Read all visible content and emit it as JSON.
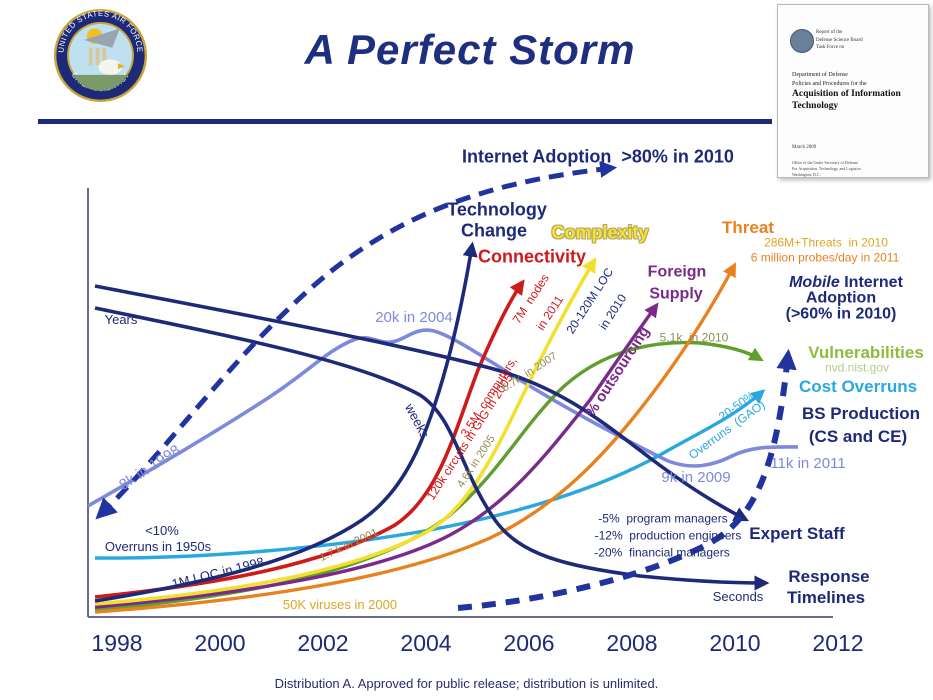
{
  "header": {
    "title": "A Perfect Storm"
  },
  "seal": {
    "top_text": "UNITED STATES AIR FORCE",
    "bottom_text": "CHIEF SCIENTIST"
  },
  "report": {
    "header_line1": "Report of the",
    "header_line2": "Defense Science Board",
    "header_line3": "Task Force on",
    "sub_line1": "Department of Defense",
    "sub_line2": "Policies and Procedures for the",
    "title_line1": "Acquisition of Information",
    "title_line2": "Technology",
    "date": "March 2009",
    "addr_line1": "Office of the Under Secretary of Defense",
    "addr_line2": "For Acquisition, Technology, and Logistics",
    "addr_line3": "Washington, D.C."
  },
  "right_panel": {
    "mobile_word": "Mobile",
    "internet_word": " Internet"
  },
  "footer": {
    "distribution": "Distribution A. Approved for public release; distribution is unlimited."
  },
  "palette": {
    "navy": "#1d2a78",
    "dashNavy": "#20339e",
    "red": "#cf1a1a",
    "yellow": "#f2df2e",
    "yellowText": "#f3e23b",
    "orange": "#e8821e",
    "gold": "#d9a826",
    "purple": "#7a2a8a",
    "green": "#5f9e2f",
    "olive": "#8e8e55",
    "vulnGreen": "#8fbc3f",
    "vulnLight": "#b3cc8a",
    "cyan": "#29a8e0",
    "periwinkle": "#7e88dd"
  },
  "chart_labels": [
    {
      "id": "years",
      "text": "Years"
    },
    {
      "id": "weeks",
      "text": "weeks"
    },
    {
      "id": "seconds",
      "text": "Seconds"
    },
    {
      "id": "internet_adoption",
      "text": "Internet Adoption  >80% in 2010"
    },
    {
      "id": "tech_change_1",
      "text": "Technology"
    },
    {
      "id": "tech_change_2",
      "text": "Change"
    },
    {
      "id": "complexity",
      "text": "Complexity"
    },
    {
      "id": "connectivity",
      "text": "Connectivity"
    },
    {
      "id": "foreign_1",
      "text": "Foreign"
    },
    {
      "id": "foreign_2",
      "text": "Supply"
    },
    {
      "id": "threat",
      "text": "Threat"
    },
    {
      "id": "threat_2010",
      "text": "286M+Threats  in 2010"
    },
    {
      "id": "probes",
      "text": "6 million probes/day in 2011"
    },
    {
      "id": "adoption_2",
      "text": "Adoption"
    },
    {
      "id": "adoption_3",
      "text": "(>60% in 2010)"
    },
    {
      "id": "vulnerabilities",
      "text": "Vulnerabilities"
    },
    {
      "id": "nvd",
      "text": "nvd.nist.gov"
    },
    {
      "id": "cost_overruns",
      "text": "Cost Overruns"
    },
    {
      "id": "bs_1",
      "text": "BS Production"
    },
    {
      "id": "bs_2",
      "text": "(CS and CE)"
    },
    {
      "id": "k11",
      "text": "11k in 2011"
    },
    {
      "id": "k9",
      "text": "9k in 2009"
    },
    {
      "id": "k20",
      "text": "20k in 2004"
    },
    {
      "id": "k8",
      "text": "8k in 1998"
    },
    {
      "id": "overruns50_1",
      "text": "<10%"
    },
    {
      "id": "overruns50_2",
      "text": "Overruns in 1950s"
    },
    {
      "id": "loc1m",
      "text": "1M LOC in 1998"
    },
    {
      "id": "k17",
      "text": "1.7 k in 2001"
    },
    {
      "id": "viruses",
      "text": "50K viruses in 2000"
    },
    {
      "id": "computers",
      "text": "3.5M  computers,"
    },
    {
      "id": "circuits",
      "text": "120k circuits in GIG in 2005"
    },
    {
      "id": "nodes_1",
      "text": "7M  nodes"
    },
    {
      "id": "nodes_2",
      "text": "in 2011"
    },
    {
      "id": "loc20_1",
      "text": "20-120M LOC"
    },
    {
      "id": "loc20_2",
      "text": "in 2010"
    },
    {
      "id": "k67",
      "text": "6.7k  in 2007"
    },
    {
      "id": "k46",
      "text": "4.6k in 2005"
    },
    {
      "id": "outsourcing",
      "text": "% outsourcing"
    },
    {
      "id": "k51",
      "text": "5.1k  in 2010"
    },
    {
      "id": "gao_1",
      "text": "20-50%"
    },
    {
      "id": "gao_2",
      "text": "Overruns  (GAO)"
    },
    {
      "id": "expert",
      "text": "Expert Staff"
    },
    {
      "id": "pm",
      "text": "-5%  program managers"
    },
    {
      "id": "pe",
      "text": "-12%  production engineers"
    },
    {
      "id": "fm",
      "text": "-20%  financial managers"
    },
    {
      "id": "resp_1",
      "text": "Response"
    },
    {
      "id": "resp_2",
      "text": "Timelines"
    }
  ],
  "chart_data": {
    "type": "line",
    "x_tick_labels": [
      "1998",
      "2000",
      "2002",
      "2004",
      "2006",
      "2008",
      "2010",
      "2012"
    ],
    "x_range": [
      1998,
      2012
    ],
    "grid": false,
    "legend": "labels annotated directly on curves",
    "series": [
      {
        "name": "Internet Adoption",
        "style": "dashed",
        "color": "#20339e",
        "annotations": [
          {
            "year": 2010,
            "value": ">80%"
          }
        ]
      },
      {
        "name": "Mobile Internet Adoption",
        "style": "dashed",
        "color": "#20339e",
        "annotations": [
          {
            "year": 2010,
            "value": ">60%"
          }
        ]
      },
      {
        "name": "Technology Change",
        "color": "#1d2a78",
        "trend": "steeply rising"
      },
      {
        "name": "Connectivity",
        "color": "#cf1a1a",
        "annotations": [
          {
            "year": 2005,
            "value": "3.5M computers, 120k circuits in GIG"
          },
          {
            "year": 2011,
            "value": "7M nodes"
          }
        ]
      },
      {
        "name": "Complexity",
        "color": "#f2df2e",
        "annotations": [
          {
            "year": 1998,
            "value": "1M LOC"
          },
          {
            "year": 2010,
            "value": "20-120M LOC"
          }
        ]
      },
      {
        "name": "Foreign Supply",
        "color": "#7a2a8a",
        "metric": "% outsourcing",
        "trend": "rising"
      },
      {
        "name": "Threat",
        "color": "#e8821e",
        "annotations": [
          {
            "year": 2000,
            "value": "50K viruses"
          },
          {
            "year": 2010,
            "value": "286M+ threats"
          },
          {
            "year": 2011,
            "value": "6 million probes/day"
          }
        ]
      },
      {
        "name": "Vulnerabilities",
        "color": "#5f9e2f",
        "source": "nvd.nist.gov",
        "annotations": [
          {
            "year": 2001,
            "value": "1.7k"
          },
          {
            "year": 2005,
            "value": "4.6k"
          },
          {
            "year": 2007,
            "value": "6.7k"
          },
          {
            "year": 2010,
            "value": "5.1k"
          }
        ]
      },
      {
        "name": "Cost Overruns",
        "color": "#29a8e0",
        "annotations": [
          {
            "year": 1950,
            "value": "<10% overruns"
          },
          {
            "year": 2010,
            "value": "20-50% overruns (GAO)"
          }
        ]
      },
      {
        "name": "BS Production (CS and CE)",
        "color": "#7e88dd",
        "annotations": [
          {
            "year": 1998,
            "value": "8k"
          },
          {
            "year": 2004,
            "value": "20k"
          },
          {
            "year": 2009,
            "value": "9k"
          },
          {
            "year": 2011,
            "value": "11k"
          }
        ]
      },
      {
        "name": "Expert Staff",
        "color": "#1d2a78",
        "trend": "declining",
        "annotations": [
          {
            "value": "-5% program managers"
          },
          {
            "value": "-12% production engineers"
          },
          {
            "value": "-20% financial managers"
          }
        ]
      },
      {
        "name": "Response Timelines",
        "color": "#1d2a78",
        "trend": "Years to weeks to Seconds"
      }
    ]
  }
}
